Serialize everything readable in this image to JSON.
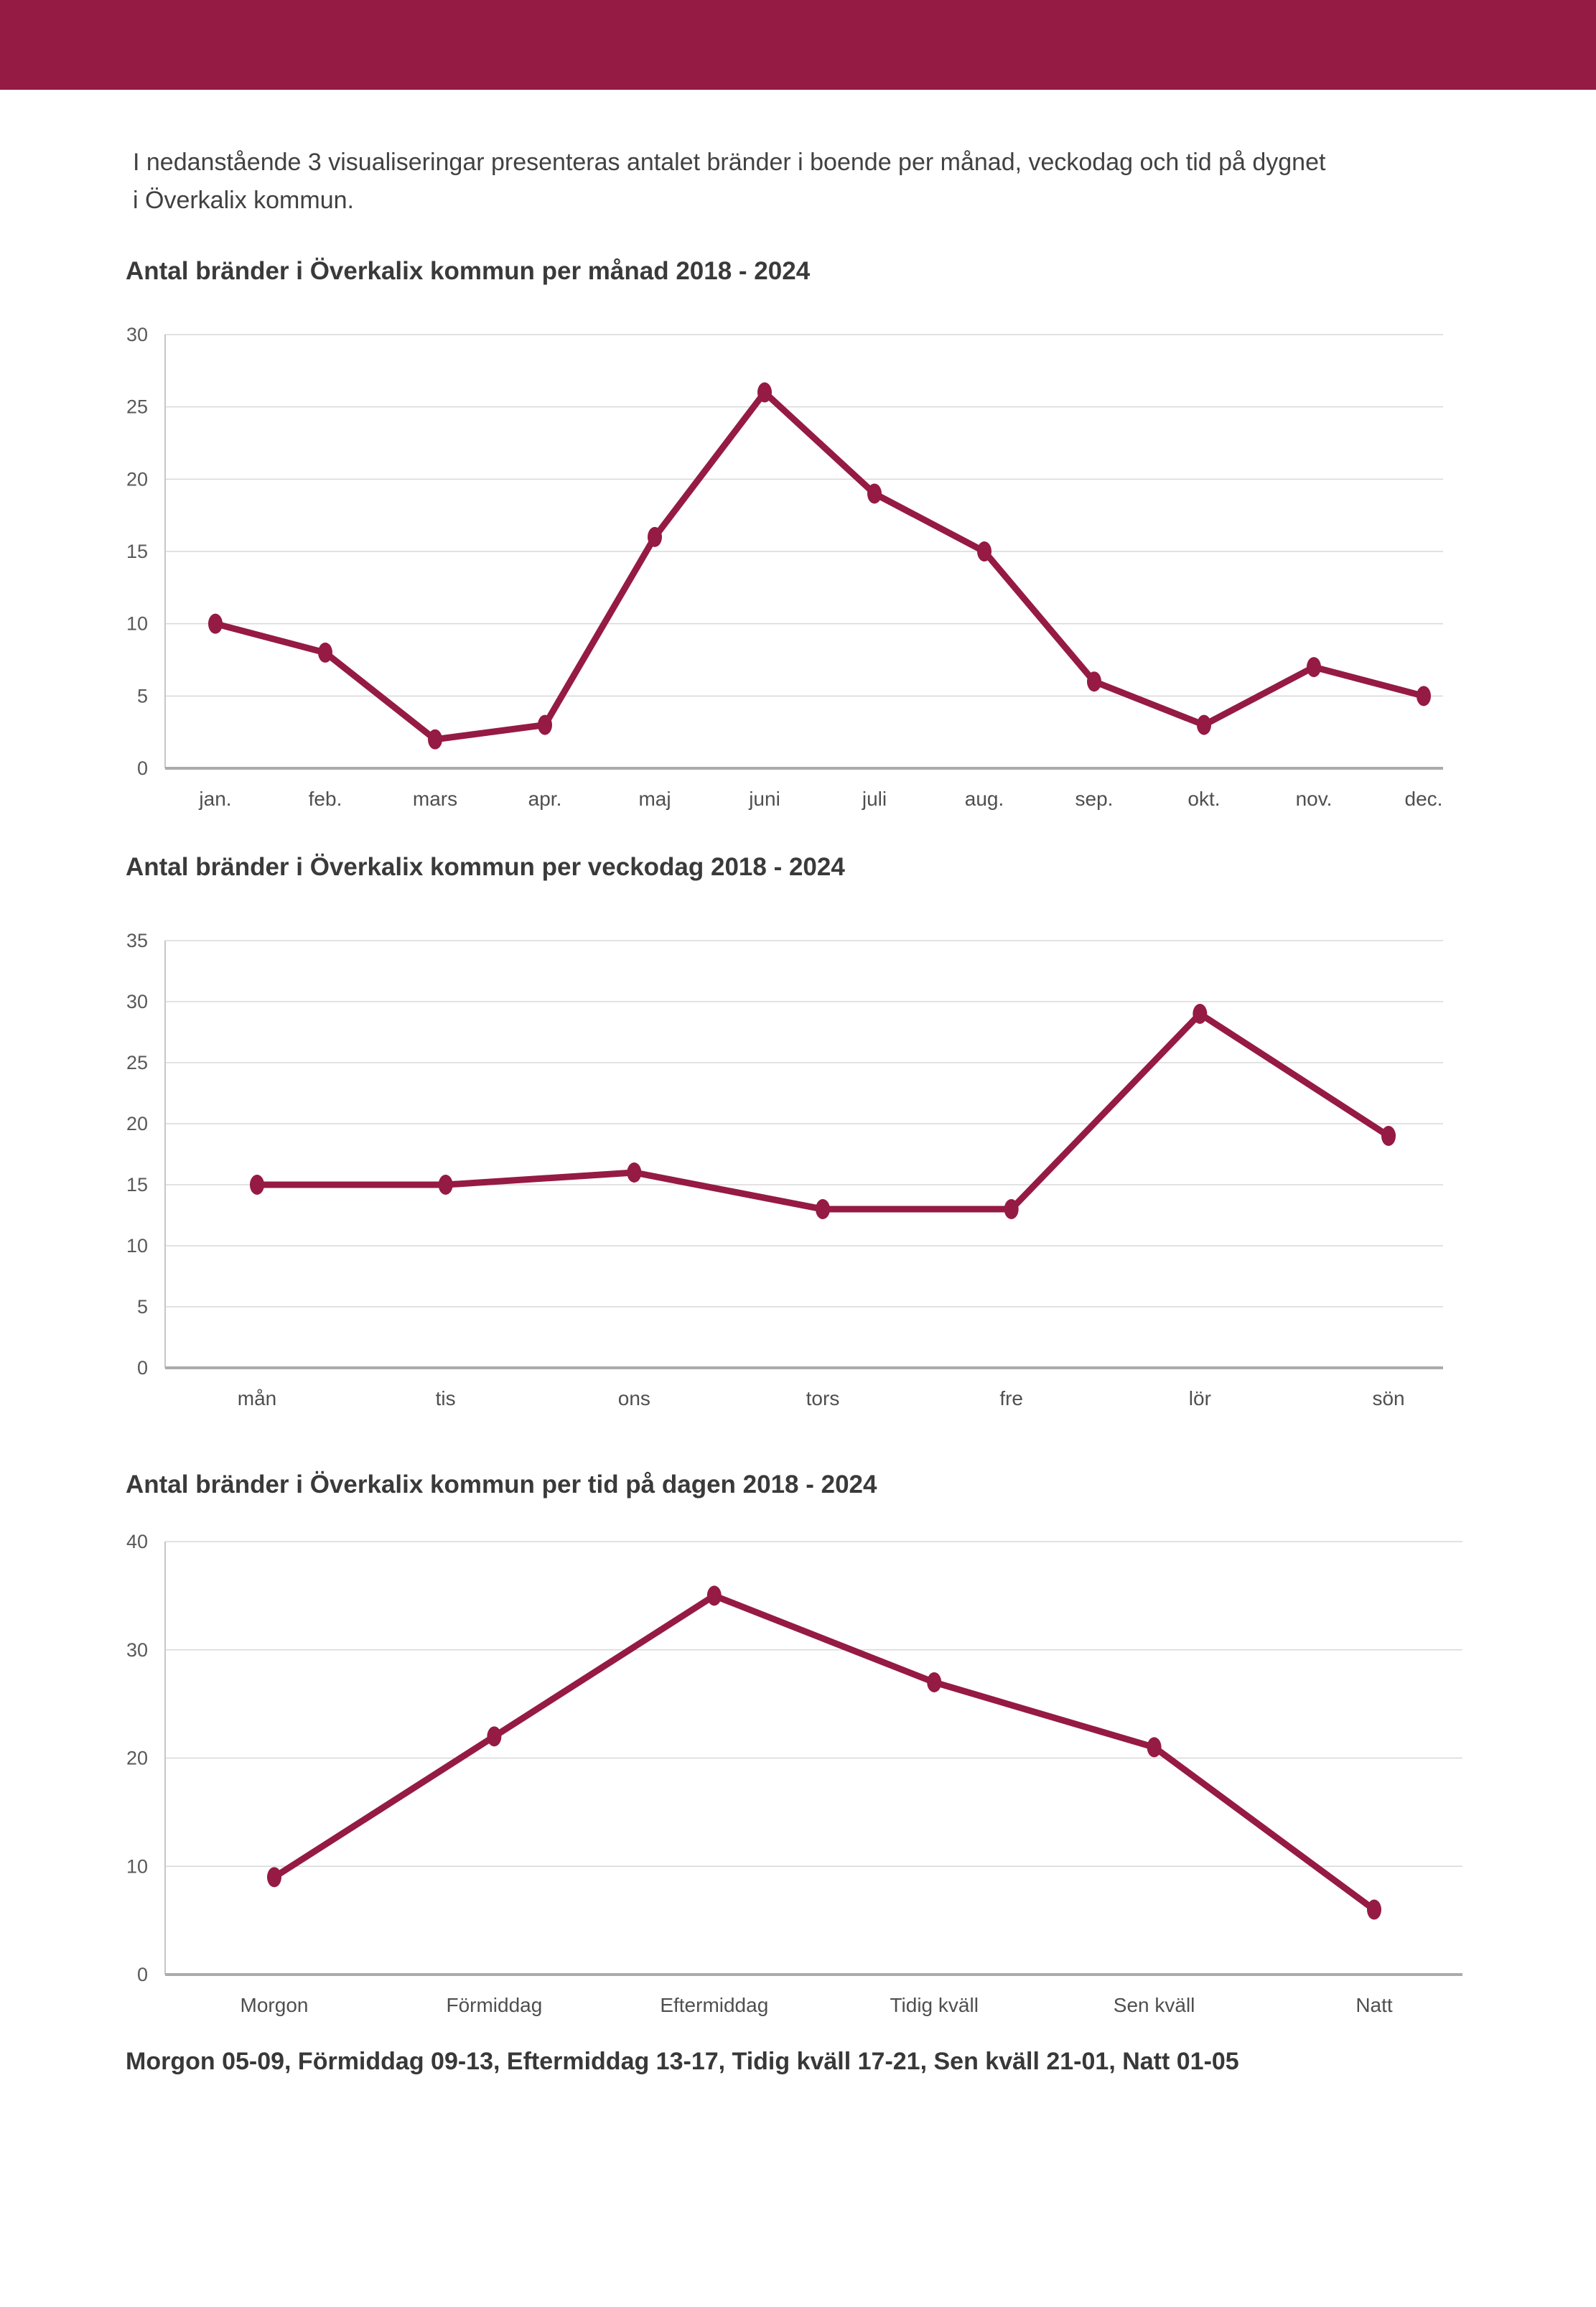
{
  "page": {
    "intro_line1": "I nedanstående 3 visualiseringar presenteras antalet bränder i boende per månad, veckodag och tid på dygnet",
    "intro_line2": "i Överkalix kommun.",
    "footer": "Morgon 05-09, Förmiddag 09-13, Eftermiddag 13-17, Tidig kväll 17-21, Sen kväll 21-01, Natt 01-05"
  },
  "colors": {
    "accent": "#951a44",
    "gridline": "#d8d8d8",
    "axis_line": "#ababab",
    "y_axis_line": "#c6c6c6",
    "tick_text": "#595959",
    "category_text": "#4f4f4f"
  },
  "chart_data": [
    {
      "type": "line",
      "title": "Antal bränder i Överkalix kommun per månad 2018 - 2024",
      "categories": [
        "jan.",
        "feb.",
        "mars",
        "apr.",
        "maj",
        "juni",
        "juli",
        "aug.",
        "sep.",
        "okt.",
        "nov.",
        "dec."
      ],
      "values": [
        10,
        8,
        2,
        3,
        16,
        26,
        19,
        15,
        6,
        3,
        7,
        5
      ],
      "xlabel": "",
      "ylabel": "",
      "ylim": [
        0,
        30
      ],
      "ytick_step": 5,
      "grid": "horizontal",
      "legend_position": "none"
    },
    {
      "type": "line",
      "title": "Antal bränder i Överkalix kommun per veckodag 2018 - 2024",
      "categories": [
        "mån",
        "tis",
        "ons",
        "tors",
        "fre",
        "lör",
        "sön"
      ],
      "values": [
        15,
        15,
        16,
        13,
        13,
        29,
        19
      ],
      "xlabel": "",
      "ylabel": "",
      "ylim": [
        0,
        35
      ],
      "ytick_step": 5,
      "grid": "horizontal",
      "legend_position": "none"
    },
    {
      "type": "line",
      "title": "Antal bränder i Överkalix kommun per tid på dagen 2018 - 2024",
      "categories": [
        "Morgon",
        "Förmiddag",
        "Eftermiddag",
        "Tidig kväll",
        "Sen kväll",
        "Natt"
      ],
      "values": [
        9,
        22,
        35,
        27,
        21,
        6
      ],
      "xlabel": "",
      "ylabel": "",
      "ylim": [
        0,
        40
      ],
      "ytick_step": 10,
      "grid": "horizontal",
      "legend_position": "none"
    }
  ]
}
